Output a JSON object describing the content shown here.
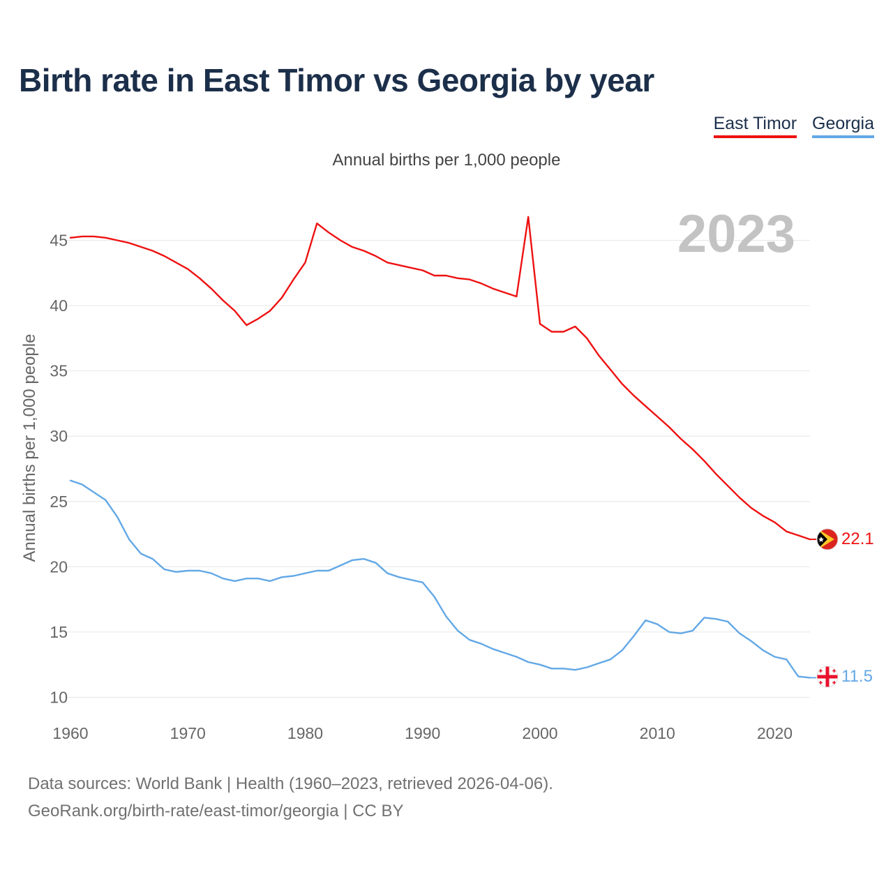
{
  "title": "Birth rate in East Timor vs Georgia by year",
  "subtitle": "Annual births per 1,000 people",
  "year_label": "2023",
  "legend": [
    {
      "label": "East Timor",
      "color": "#ee1111"
    },
    {
      "label": "Georgia",
      "color": "#63a8e6"
    }
  ],
  "footer": {
    "line1": "Data sources: World Bank | Health (1960–2023, retrieved 2026-04-06).",
    "line2": "GeoRank.org/birth-rate/east-timor/georgia | CC BY"
  },
  "chart_data": {
    "type": "line",
    "title": "Birth rate in East Timor vs Georgia by year",
    "xlabel": "",
    "ylabel": "Annual births per 1,000 people",
    "xlim": [
      1960,
      2023
    ],
    "ylim": [
      10,
      47
    ],
    "x_ticks": [
      1960,
      1970,
      1980,
      1990,
      2000,
      2010,
      2020
    ],
    "y_ticks": [
      10,
      15,
      20,
      25,
      30,
      35,
      40,
      45
    ],
    "grid": true,
    "legend_position": "top-right",
    "x": [
      1960,
      1961,
      1962,
      1963,
      1964,
      1965,
      1966,
      1967,
      1968,
      1969,
      1970,
      1971,
      1972,
      1973,
      1974,
      1975,
      1976,
      1977,
      1978,
      1979,
      1980,
      1981,
      1982,
      1983,
      1984,
      1985,
      1986,
      1987,
      1988,
      1989,
      1990,
      1991,
      1992,
      1993,
      1994,
      1995,
      1996,
      1997,
      1998,
      1999,
      2000,
      2001,
      2002,
      2003,
      2004,
      2005,
      2006,
      2007,
      2008,
      2009,
      2010,
      2011,
      2012,
      2013,
      2014,
      2015,
      2016,
      2017,
      2018,
      2019,
      2020,
      2021,
      2022,
      2023
    ],
    "series": [
      {
        "name": "East Timor",
        "color": "#ee1111",
        "end_label": "22.1",
        "values": [
          45.2,
          45.3,
          45.3,
          45.2,
          45.0,
          44.8,
          44.5,
          44.2,
          43.8,
          43.3,
          42.8,
          42.1,
          41.3,
          40.4,
          39.6,
          38.5,
          39.0,
          39.6,
          40.6,
          42.0,
          43.3,
          46.3,
          45.6,
          45.0,
          44.5,
          44.2,
          43.8,
          43.3,
          43.1,
          42.9,
          42.7,
          42.3,
          42.3,
          42.1,
          42.0,
          41.7,
          41.3,
          41.0,
          40.7,
          46.8,
          38.6,
          38.0,
          38.0,
          38.4,
          37.5,
          36.2,
          35.1,
          34.0,
          33.1,
          32.3,
          31.5,
          30.7,
          29.8,
          29.0,
          28.1,
          27.1,
          26.2,
          25.3,
          24.5,
          23.9,
          23.4,
          22.7,
          22.4,
          22.1
        ]
      },
      {
        "name": "Georgia",
        "color": "#63a8e6",
        "end_label": "11.5",
        "values": [
          26.6,
          26.3,
          25.7,
          25.1,
          23.8,
          22.1,
          21.0,
          20.6,
          19.8,
          19.6,
          19.7,
          19.7,
          19.5,
          19.1,
          18.9,
          19.1,
          19.1,
          18.9,
          19.2,
          19.3,
          19.5,
          19.7,
          19.7,
          20.1,
          20.5,
          20.6,
          20.3,
          19.5,
          19.2,
          19.0,
          18.8,
          17.7,
          16.2,
          15.1,
          14.4,
          14.1,
          13.7,
          13.4,
          13.1,
          12.7,
          12.5,
          12.2,
          12.2,
          12.1,
          12.3,
          12.6,
          12.9,
          13.6,
          14.7,
          15.9,
          15.6,
          15.0,
          14.9,
          15.1,
          16.1,
          16.0,
          15.8,
          14.9,
          14.3,
          13.6,
          13.1,
          12.9,
          11.6,
          11.5
        ]
      }
    ]
  }
}
